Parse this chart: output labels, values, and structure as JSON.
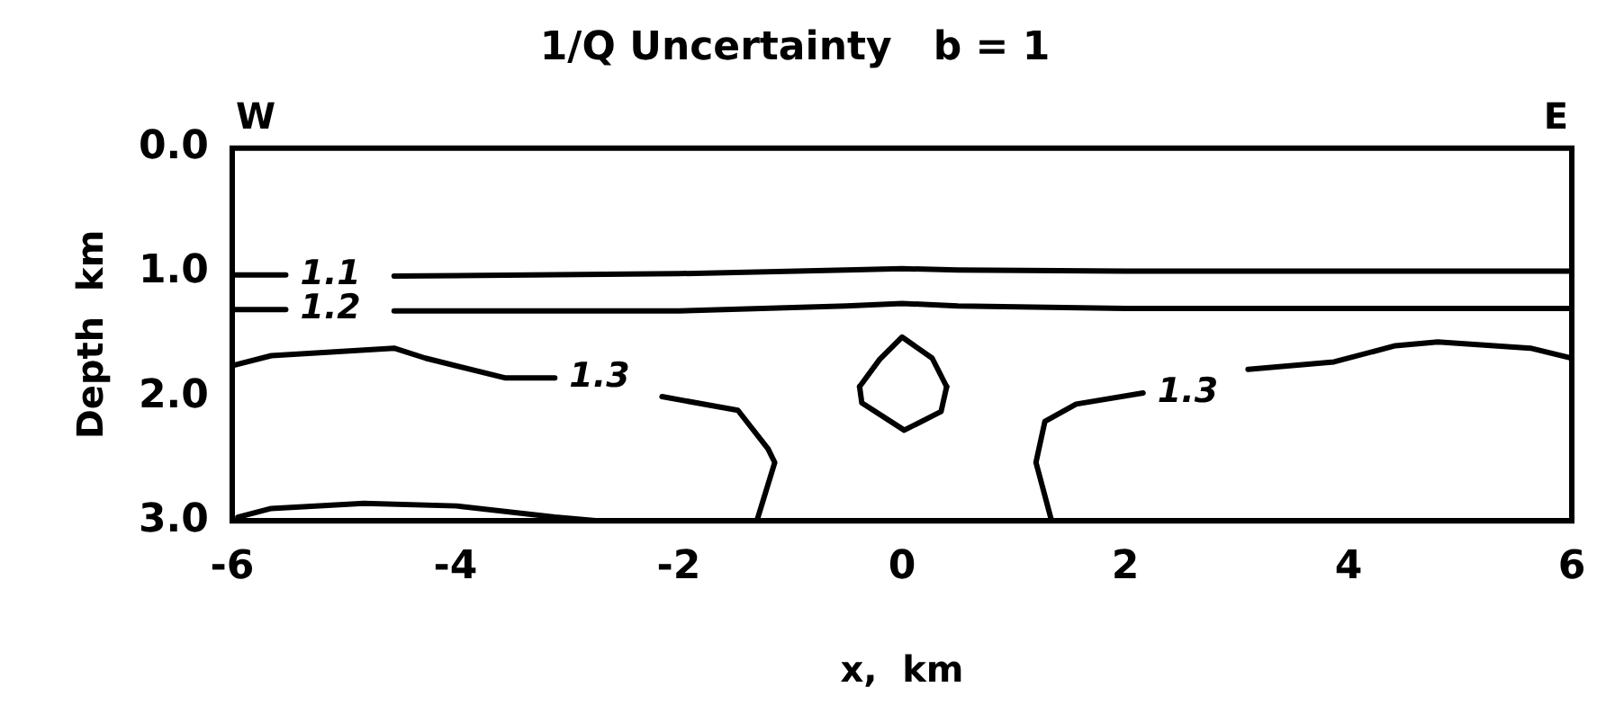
{
  "chart_data": {
    "type": "line",
    "title": "1/Q Uncertainty   b = 1",
    "xlabel": "x,  km",
    "ylabel": "Depth  km",
    "xlim": [
      -6,
      6
    ],
    "xticks": [
      -6,
      -4,
      -2,
      0,
      2,
      4,
      6
    ],
    "ylim": [
      3,
      0
    ],
    "yticks": [
      {
        "value": 0,
        "label": "0.0"
      },
      {
        "value": 1,
        "label": "1.0"
      },
      {
        "value": 2,
        "label": "2.0"
      },
      {
        "value": 3,
        "label": "3.0"
      }
    ],
    "grid": false,
    "legend": false,
    "marker": "none",
    "line_style": "solid",
    "series": [
      {
        "color": "#000000",
        "x": [
          -6,
          -5.52,
          -5,
          -4.55,
          -2,
          -0.5,
          0,
          0.5,
          2,
          6
        ],
        "values": [
          1.02,
          1.02,
          null,
          1.03,
          1.01,
          0.98,
          0.97,
          0.98,
          0.99,
          0.99
        ]
      },
      {
        "color": "#000000",
        "x": [
          -6,
          -5.52,
          -5,
          -4.55,
          -2,
          -0.5,
          0,
          0.5,
          2,
          6
        ],
        "values": [
          1.3,
          1.3,
          null,
          1.31,
          1.31,
          1.27,
          1.25,
          1.27,
          1.29,
          1.29
        ]
      },
      {
        "color": "#000000",
        "x": [
          -6,
          -5.65,
          -4.55,
          -4.27,
          -3.55,
          -3.11,
          -2.6,
          -2.15,
          -1.47,
          -1.2,
          -1.14,
          -1.3
        ],
        "values": [
          1.75,
          1.67,
          1.61,
          1.69,
          1.85,
          1.85,
          null,
          2.0,
          2.11,
          2.42,
          2.53,
          3.0
        ]
      },
      {
        "color": "#000000",
        "x": [
          1.34,
          1.2,
          1.28,
          1.56,
          2.16,
          2.6,
          3.1,
          3.87,
          4.42,
          4.8,
          5.63,
          6
        ],
        "values": [
          3.0,
          2.53,
          2.2,
          2.06,
          1.97,
          null,
          1.78,
          1.72,
          1.59,
          1.56,
          1.61,
          1.69
        ]
      },
      {
        "color": "#000000",
        "x": [
          -0.38,
          -0.2,
          0,
          0.27,
          0.4
        ],
        "values": [
          1.92,
          1.7,
          1.52,
          1.69,
          1.92
        ]
      },
      {
        "color": "#000000",
        "x": [
          -0.38,
          -0.36,
          0.02,
          0.35,
          0.4
        ],
        "values": [
          1.92,
          2.05,
          2.27,
          2.12,
          1.92
        ]
      },
      {
        "color": "#000000",
        "x": [
          -5.95,
          -5.65,
          -4.82,
          -3.99,
          -3.11,
          -2.72
        ],
        "values": [
          2.97,
          2.9,
          2.86,
          2.88,
          2.97,
          3.0
        ]
      }
    ],
    "annotations": [
      "W",
      "E",
      {
        "text": "1.1",
        "x": -5.52,
        "y": 1.02
      },
      {
        "text": "1.2",
        "x": -5.52,
        "y": 1.3
      },
      {
        "text": "1.3",
        "x": -3.11,
        "y": 1.85
      },
      {
        "text": "1.3",
        "x": 2.16,
        "y": 1.97
      }
    ]
  }
}
